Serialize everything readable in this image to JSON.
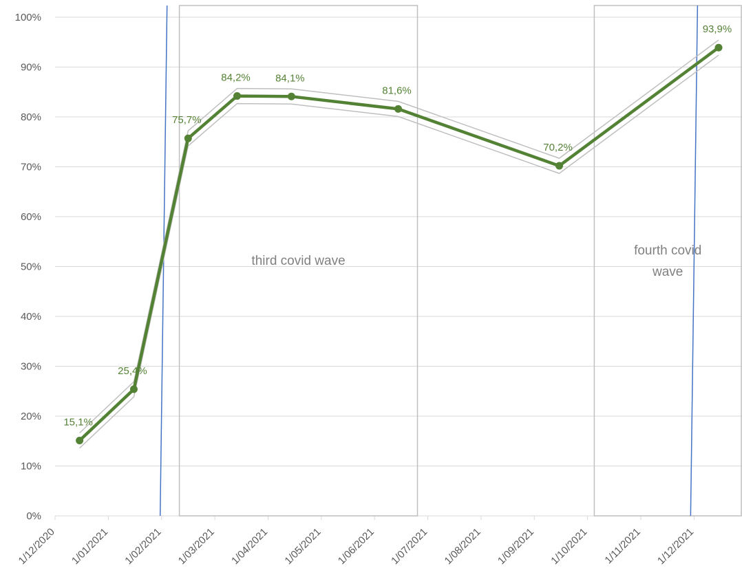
{
  "chart_data": {
    "type": "line",
    "title": "",
    "xlabel": "",
    "ylabel": "",
    "x_tick_labels": [
      "1/12/2020",
      "1/01/2021",
      "1/02/2021",
      "1/03/2021",
      "1/04/2021",
      "1/05/2021",
      "1/06/2021",
      "1/07/2021",
      "1/08/2021",
      "1/09/2021",
      "1/10/2021",
      "1/11/2021",
      "1/12/2021"
    ],
    "xlim": [
      "2020-12-01",
      "2021-12-01"
    ],
    "ylim": [
      0,
      1
    ],
    "y_ticks": [
      0,
      0.1,
      0.2,
      0.3,
      0.4,
      0.5,
      0.6,
      0.7,
      0.8,
      0.9,
      1.0
    ],
    "y_tick_labels": [
      "0%",
      "10%",
      "20%",
      "30%",
      "40%",
      "50%",
      "60%",
      "70%",
      "80%",
      "90%",
      "100%"
    ],
    "grid": "horizontal",
    "legend": "none",
    "series": [
      {
        "x": [
          "2020-12-15",
          "2021-01-15",
          "2021-02-15",
          "2021-03-15",
          "2021-04-15",
          "2021-06-15",
          "2021-09-15",
          "2021-12-15"
        ],
        "values": [
          0.151,
          0.254,
          0.757,
          0.842,
          0.841,
          0.816,
          0.702,
          0.939
        ],
        "labels": [
          "15,1%",
          "25,4%",
          "75,7%",
          "84,2%",
          "84,1%",
          "81,6%",
          "70,2%",
          "93,9%"
        ],
        "color": "#548235"
      }
    ],
    "annotations": [
      {
        "text": "third covid wave",
        "x_start": "2021-02-10",
        "x_end": "2021-06-26"
      },
      {
        "text": "fourth covid wave",
        "lines": [
          "fourth covid",
          "wave"
        ],
        "x_start": "2021-10-05",
        "x_end": "2021-12-31"
      }
    ],
    "reference_lines": [
      "2021-02-01",
      "2021-12-01"
    ],
    "colors": {
      "series": "#548235",
      "band": "#bfbfbf",
      "reference": "#4472c4",
      "grid": "#d9d9d9",
      "text": "#595959",
      "annotation_text": "#808080"
    }
  }
}
